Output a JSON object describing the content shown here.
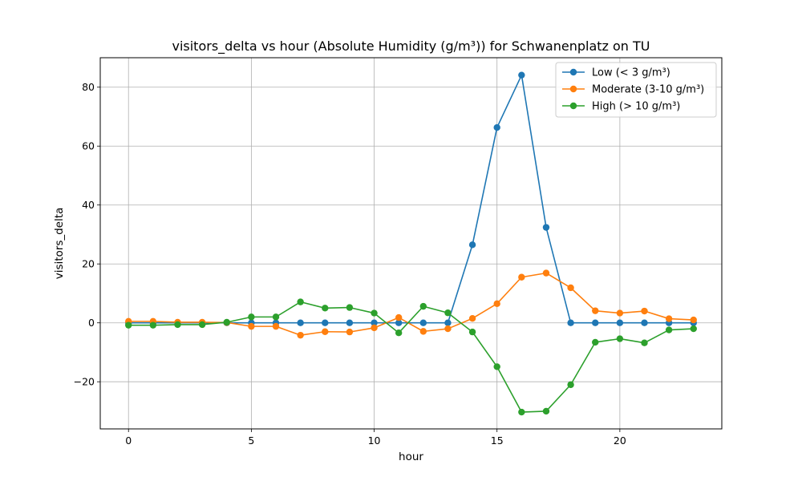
{
  "chart_data": {
    "type": "line",
    "title": "visitors_delta vs hour (Absolute Humidity (g/m³)) for Schwanenplatz on TU",
    "xlabel": "hour",
    "ylabel": "visitors_delta",
    "xlim": [
      -1.15,
      24.15
    ],
    "ylim": [
      -36,
      90
    ],
    "xticks": [
      0,
      5,
      10,
      15,
      20
    ],
    "yticks": [
      -20,
      0,
      20,
      40,
      60,
      80
    ],
    "grid": true,
    "legend_position": "top-right",
    "x": [
      0,
      1,
      2,
      3,
      4,
      5,
      6,
      7,
      8,
      9,
      10,
      11,
      12,
      13,
      14,
      15,
      16,
      17,
      18,
      19,
      20,
      21,
      22,
      23
    ],
    "series": [
      {
        "name": "Low (< 3 g/m³)",
        "color": "#1f77b4",
        "values": [
          0,
          0,
          0,
          0,
          0,
          0,
          0,
          0,
          0,
          0,
          0,
          0,
          0,
          0,
          26.5,
          66.3,
          84.1,
          32.4,
          0,
          0,
          0,
          0,
          0,
          0
        ]
      },
      {
        "name": "Moderate (3-10 g/m³)",
        "color": "#ff7f0e",
        "values": [
          0.5,
          0.5,
          0.2,
          0.2,
          0.1,
          -1.2,
          -1.2,
          -4.2,
          -3.0,
          -3.1,
          -1.7,
          1.8,
          -2.9,
          -2.0,
          1.5,
          6.5,
          15.5,
          16.9,
          11.9,
          4.1,
          3.3,
          4.0,
          1.4,
          1.0
        ]
      },
      {
        "name": "High (> 10 g/m³)",
        "color": "#2ca02c",
        "values": [
          -0.8,
          -0.8,
          -0.6,
          -0.6,
          0.2,
          2.0,
          2.0,
          7.1,
          5.0,
          5.2,
          3.3,
          -3.4,
          5.6,
          3.4,
          -3.1,
          -14.9,
          -30.3,
          -30.0,
          -21.0,
          -6.6,
          -5.4,
          -6.8,
          -2.4,
          -2.0
        ]
      }
    ]
  }
}
